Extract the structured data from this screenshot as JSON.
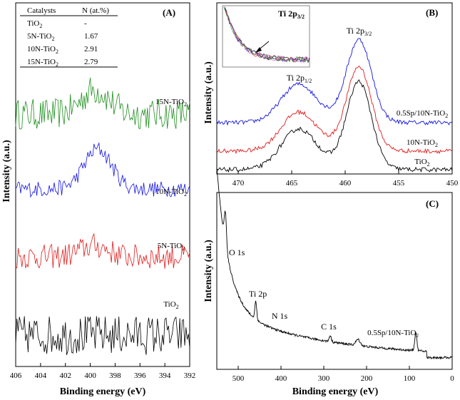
{
  "colors": {
    "green": "#1f8f1f",
    "blue": "#1414e6",
    "red": "#e01c1c",
    "black": "#000000"
  },
  "chart_data": [
    {
      "type": "line",
      "panel_label": "(A)",
      "xlabel": "Binding energy (eV)",
      "ylabel": "Intensity (a.u.)",
      "xlim": [
        406,
        392
      ],
      "x_ticks": [
        "406",
        "404",
        "402",
        "400",
        "398",
        "396",
        "394",
        "392"
      ],
      "series": [
        {
          "name": "15N-TiO",
          "sub": "2",
          "color": "#1f8f1f",
          "peak_x": 399.6,
          "peak_height": 0.55,
          "noise": 0.35
        },
        {
          "name": "10N-TiO",
          "sub": "2",
          "color": "#1414e6",
          "peak_x": 399.4,
          "peak_height": 0.9,
          "noise": 0.18
        },
        {
          "name": "5N-TiO",
          "sub": "2",
          "color": "#e01c1c",
          "peak_x": 399.7,
          "peak_height": 0.25,
          "noise": 0.28
        },
        {
          "name": "TiO",
          "sub": "2",
          "color": "#000000",
          "peak_x": 399.0,
          "peak_height": 0.0,
          "noise": 0.45
        }
      ],
      "table": {
        "headers": [
          "Catalysts",
          "N (at.%)"
        ],
        "rows": [
          {
            "catalyst": "TiO",
            "sub": "2",
            "value": "-"
          },
          {
            "catalyst": "5N-TiO",
            "sub": "2",
            "value": "1.67"
          },
          {
            "catalyst": "10N-TiO",
            "sub": "2",
            "value": "2.91"
          },
          {
            "catalyst": "15N-TiO",
            "sub": "2",
            "value": "2.79"
          }
        ]
      }
    },
    {
      "type": "line",
      "panel_label": "(B)",
      "ylabel": "Intensity (a.u.)",
      "xlim": [
        472,
        450
      ],
      "x_ticks": [
        "470",
        "465",
        "460",
        "455",
        "450"
      ],
      "peak_labels": [
        {
          "main": "Ti 2p",
          "sub": "1/2",
          "x": 464.3
        },
        {
          "main": "Ti 2p",
          "sub": "3/2",
          "x": 458.7
        }
      ],
      "inset_title": {
        "main": "Ti 2p",
        "sub": "3/2"
      },
      "series": [
        {
          "name": "0.5Sp/10N-TiO",
          "sub": "2",
          "color": "#1414e6"
        },
        {
          "name": "10N-TiO",
          "sub": "2",
          "color": "#e01c1c"
        },
        {
          "name": "TiO",
          "sub": "2",
          "color": "#000000"
        }
      ]
    },
    {
      "type": "line",
      "panel_label": "(C)",
      "xlabel": "Binding energy (eV)",
      "ylabel": "Intensity (a.u.)",
      "xlim": [
        550,
        0
      ],
      "x_ticks": [
        "500",
        "400",
        "300",
        "200",
        "100",
        "0"
      ],
      "annotations": [
        {
          "text": "O 1s",
          "x": 530
        },
        {
          "text": "Ti 2p",
          "x": 459
        },
        {
          "text": "N 1s",
          "x": 400
        },
        {
          "text": "C 1s",
          "x": 285
        }
      ],
      "series": [
        {
          "name": "0.5Sp/10N-TiO",
          "sub": "2",
          "color": "#000000"
        }
      ]
    }
  ]
}
